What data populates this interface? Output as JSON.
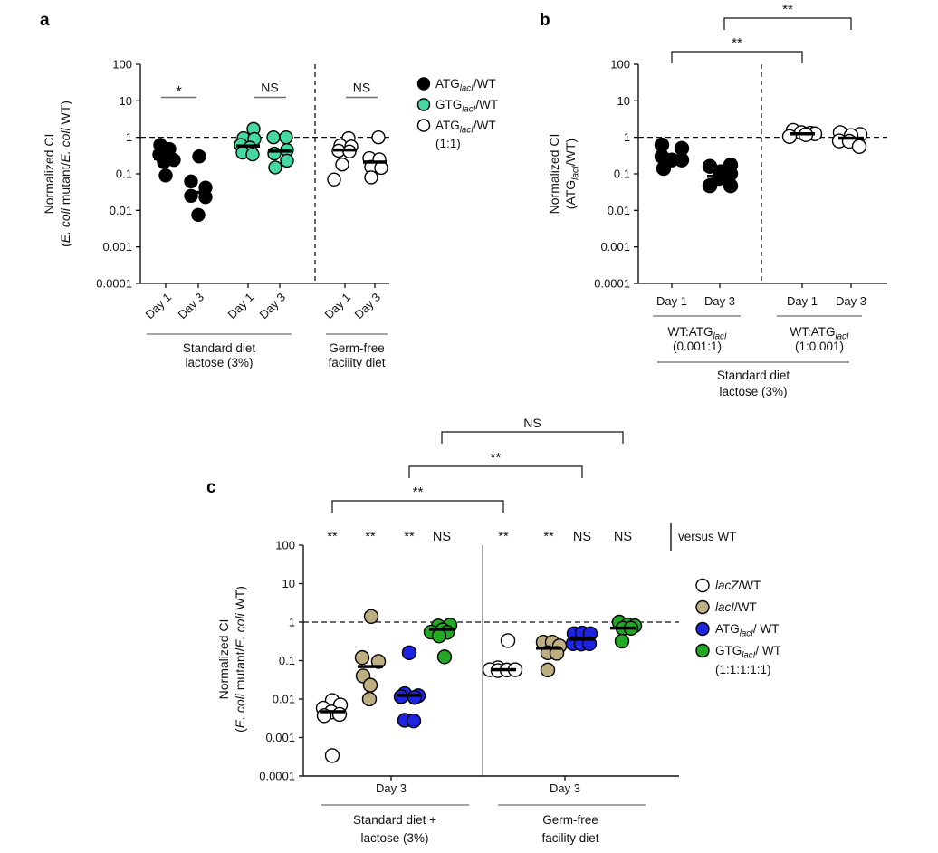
{
  "figure_title": "",
  "colors": {
    "black": "#000000",
    "white": "#ffffff",
    "mint": "#45d9a1",
    "tan": "#bdaf82",
    "blue": "#1d24df",
    "green": "#23a826",
    "axis": "#111111",
    "gray_line": "#6e6e6e",
    "separator_gray": "#888888"
  },
  "chart_data": [
    {
      "panel": "a",
      "type": "scatter",
      "y_scale": "log",
      "ylim": [
        0.0001,
        100
      ],
      "yticks": [
        "100",
        "10",
        "1",
        "0.1",
        "0.01",
        "0.001",
        "0.0001"
      ],
      "ylabel_lines": [
        [
          {
            "t": "Normalized CI"
          }
        ],
        [
          {
            "t": "("
          },
          {
            "t": "E. coli",
            "it": true
          },
          {
            "t": " mutant/"
          },
          {
            "t": "E. coli",
            "it": true
          },
          {
            "t": " WT)"
          }
        ]
      ],
      "reference_line": 1,
      "groups": [
        {
          "day": "Day 1",
          "series": "ATG_lacI/WT",
          "color": "black",
          "median": 0.26,
          "points": [
            [
              -6,
              0.62
            ],
            [
              4,
              0.48
            ],
            [
              -7,
              0.34
            ],
            [
              3,
              0.27
            ],
            [
              9,
              0.24
            ],
            [
              -2,
              0.21
            ],
            [
              0,
              0.09
            ]
          ]
        },
        {
          "day": "Day 3",
          "series": "ATG_lacI/WT",
          "color": "black",
          "median": 0.031,
          "points": [
            [
              1,
              0.3
            ],
            [
              -8,
              0.062
            ],
            [
              8,
              0.042
            ],
            [
              -8,
              0.025
            ],
            [
              8,
              0.023
            ],
            [
              0,
              0.0075
            ]
          ]
        },
        {
          "day": "Day 1",
          "series": "GTG_lacI/WT",
          "color": "mint",
          "median": 0.58,
          "points": [
            [
              6,
              1.7
            ],
            [
              -5,
              0.95
            ],
            [
              7,
              0.9
            ],
            [
              -8,
              0.62
            ],
            [
              2,
              0.52
            ],
            [
              -6,
              0.38
            ],
            [
              5,
              0.34
            ]
          ]
        },
        {
          "day": "Day 3",
          "series": "GTG_lacI/WT",
          "color": "mint",
          "median": 0.42,
          "points": [
            [
              -7,
              1.0
            ],
            [
              7,
              1.0
            ],
            [
              8,
              0.45
            ],
            [
              -6,
              0.36
            ],
            [
              8,
              0.23
            ],
            [
              -5,
              0.15
            ]
          ]
        },
        {
          "day": "Day 1",
          "series": "ATG_lacI/WT (1:1)",
          "color": "white",
          "median": 0.45,
          "points": [
            [
              4,
              0.95
            ],
            [
              -5,
              0.6
            ],
            [
              7,
              0.56
            ],
            [
              -7,
              0.43
            ],
            [
              5,
              0.41
            ],
            [
              -3,
              0.18
            ],
            [
              -12,
              0.07
            ]
          ]
        },
        {
          "day": "Day 3",
          "series": "ATG_lacI/WT (1:1)",
          "color": "white",
          "median": 0.21,
          "points": [
            [
              4,
              1.0
            ],
            [
              -6,
              0.27
            ],
            [
              5,
              0.25
            ],
            [
              -4,
              0.155
            ],
            [
              7,
              0.145
            ],
            [
              -4,
              0.08
            ]
          ]
        }
      ],
      "significance": [
        {
          "label": "*"
        },
        {
          "label": "NS"
        },
        {
          "label": "NS"
        }
      ],
      "sections": [
        {
          "lines": [
            "Standard diet",
            "lactose (3%)"
          ]
        },
        {
          "lines": [
            "Germ-free",
            "facility diet"
          ]
        }
      ],
      "legend": [
        {
          "color": "black",
          "segments": [
            {
              "t": "ATG"
            },
            {
              "t": "lacI",
              "it": true,
              "sub": true
            },
            {
              "t": "/WT"
            }
          ]
        },
        {
          "color": "mint",
          "segments": [
            {
              "t": "GTG"
            },
            {
              "t": "lacI",
              "it": true,
              "sub": true
            },
            {
              "t": "/WT"
            }
          ]
        },
        {
          "color": "white",
          "segments": [
            {
              "t": "ATG"
            },
            {
              "t": "lacI",
              "it": true,
              "sub": true
            },
            {
              "t": "/WT"
            }
          ],
          "extra": "(1:1)"
        }
      ]
    },
    {
      "panel": "b",
      "type": "scatter",
      "y_scale": "log",
      "ylim": [
        0.0001,
        100
      ],
      "yticks": [
        "100",
        "10",
        "1",
        "0.1",
        "0.01",
        "0.001",
        "0.0001"
      ],
      "ylabel_lines": [
        [
          {
            "t": "Normalized CI"
          }
        ],
        [
          {
            "t": "(ATG"
          },
          {
            "t": "lacI",
            "it": true,
            "sub": true
          },
          {
            "t": "/WT)"
          }
        ]
      ],
      "reference_line": 1,
      "groups": [
        {
          "day": "Day 1",
          "series": "WT:ATG_lacI (0.001:1)",
          "color": "black",
          "median": 0.27,
          "points": [
            [
              -11,
              0.62
            ],
            [
              11,
              0.5
            ],
            [
              -11,
              0.3
            ],
            [
              0,
              0.24
            ],
            [
              11,
              0.24
            ],
            [
              -9,
              0.14
            ]
          ]
        },
        {
          "day": "Day 3",
          "series": "WT:ATG_lacI (0.001:1)",
          "color": "black",
          "median": 0.085,
          "points": [
            [
              -11,
              0.16
            ],
            [
              12,
              0.175
            ],
            [
              12,
              0.1
            ],
            [
              1,
              0.115
            ],
            [
              -1,
              0.075
            ],
            [
              -11,
              0.047
            ],
            [
              12,
              0.047
            ]
          ]
        },
        {
          "day": "Day 1",
          "series": "WT:ATG_lacI (1:0.001)",
          "color": "white",
          "median": 1.25,
          "points": [
            [
              -10,
              1.55
            ],
            [
              -1,
              1.35
            ],
            [
              9,
              1.3
            ],
            [
              14,
              1.25
            ],
            [
              4,
              1.18
            ],
            [
              -14,
              1.05
            ]
          ]
        },
        {
          "day": "Day 3",
          "series": "WT:ATG_lacI (1:0.001)",
          "color": "white",
          "median": 0.95,
          "points": [
            [
              -12,
              1.35
            ],
            [
              10,
              1.2
            ],
            [
              0,
              1.12
            ],
            [
              -13,
              0.8
            ],
            [
              -2,
              0.78
            ],
            [
              9,
              0.56
            ]
          ]
        }
      ],
      "brackets": [
        {
          "label": "**"
        },
        {
          "label": "**"
        }
      ],
      "subgroups": [
        {
          "line1_segments": [
            {
              "t": "WT:ATG"
            },
            {
              "t": "lacI",
              "it": true,
              "sub": true
            }
          ],
          "line2": "(0.001:1)"
        },
        {
          "line1_segments": [
            {
              "t": "WT:ATG"
            },
            {
              "t": "lacI",
              "it": true,
              "sub": true
            }
          ],
          "line2": "(1:0.001)"
        }
      ],
      "sections": [
        {
          "lines": [
            "Standard diet",
            "lactose (3%)"
          ]
        }
      ]
    },
    {
      "panel": "c",
      "type": "scatter",
      "y_scale": "log",
      "ylim": [
        0.0001,
        100
      ],
      "yticks": [
        "100",
        "10",
        "1",
        "0.1",
        "0.01",
        "0.001",
        "0.0001"
      ],
      "ylabel_lines": [
        [
          {
            "t": "Normalized CI"
          }
        ],
        [
          {
            "t": "("
          },
          {
            "t": "E. coli",
            "it": true
          },
          {
            "t": " mutant/"
          },
          {
            "t": "E. coli",
            "it": true
          },
          {
            "t": " WT)"
          }
        ]
      ],
      "reference_line": 1,
      "groups": [
        {
          "series": "lacZ/WT standard diet",
          "color": "white",
          "median": 0.0047,
          "points": [
            [
              0,
              0.0092
            ],
            [
              9,
              0.007
            ],
            [
              -10,
              0.0058
            ],
            [
              -1,
              0.0046
            ],
            [
              8,
              0.004
            ],
            [
              -9,
              0.0037
            ],
            [
              0,
              0.00034
            ]
          ]
        },
        {
          "series": "lacI/WT standard diet",
          "color": "tan",
          "median": 0.07,
          "points": [
            [
              1,
              1.4
            ],
            [
              -9,
              0.12
            ],
            [
              9,
              0.095
            ],
            [
              -8,
              0.04
            ],
            [
              0,
              0.023
            ],
            [
              -1,
              0.01
            ]
          ]
        },
        {
          "series": "ATG_lacI/WT standard diet",
          "color": "blue",
          "median": 0.0125,
          "points": [
            [
              0,
              0.16
            ],
            [
              -5,
              0.0138
            ],
            [
              10,
              0.0122
            ],
            [
              -9,
              0.0115
            ],
            [
              6,
              0.011
            ],
            [
              -5,
              0.0028
            ],
            [
              5,
              0.0027
            ]
          ]
        },
        {
          "series": "GTG_lacI/WT standard diet",
          "color": "green",
          "median": 0.65,
          "points": [
            [
              9,
              0.83
            ],
            [
              -4,
              0.79
            ],
            [
              1,
              0.63
            ],
            [
              -12,
              0.55
            ],
            [
              6,
              0.54
            ],
            [
              -3,
              0.44
            ],
            [
              3,
              0.125
            ]
          ]
        },
        {
          "series": "lacZ/WT germ-free",
          "color": "white",
          "median": 0.058,
          "points": [
            [
              5,
              0.33
            ],
            [
              -6,
              0.065
            ],
            [
              -15,
              0.058
            ],
            [
              -6,
              0.055
            ],
            [
              4,
              0.057
            ],
            [
              13,
              0.058
            ]
          ]
        },
        {
          "series": "lacI/WT germ-free",
          "color": "tan",
          "median": 0.21,
          "points": [
            [
              -6,
              0.3
            ],
            [
              4,
              0.3
            ],
            [
              12,
              0.24
            ],
            [
              -1,
              0.16
            ],
            [
              9,
              0.155
            ],
            [
              -1,
              0.057
            ]
          ]
        },
        {
          "series": "ATG_lacI/WT germ-free",
          "color": "blue",
          "median": 0.36,
          "points": [
            [
              -9,
              0.5
            ],
            [
              0,
              0.52
            ],
            [
              9,
              0.5
            ],
            [
              -10,
              0.275
            ],
            [
              -1,
              0.27
            ],
            [
              8,
              0.275
            ]
          ]
        },
        {
          "series": "GTG_lacI/WT germ-free",
          "color": "green",
          "median": 0.7,
          "points": [
            [
              -4,
              1.0
            ],
            [
              5,
              0.84
            ],
            [
              13,
              0.8
            ],
            [
              0,
              0.69
            ],
            [
              9,
              0.69
            ],
            [
              -1,
              0.32
            ]
          ]
        }
      ],
      "col_significance": [
        "**",
        "**",
        "**",
        "NS",
        "**",
        "**",
        "NS",
        "NS"
      ],
      "brackets": [
        {
          "label": "**"
        },
        {
          "label": "**"
        },
        {
          "label": "NS"
        }
      ],
      "versus_note": "versus WT",
      "sections": [
        {
          "day": "Day 3",
          "lines": [
            "Standard diet +",
            "lactose (3%)"
          ]
        },
        {
          "day": "Day 3",
          "lines": [
            "Germ-free",
            "facility diet"
          ]
        }
      ],
      "legend": [
        {
          "color": "white",
          "segments": [
            {
              "t": "lacZ",
              "it": true
            },
            {
              "t": "/WT"
            }
          ]
        },
        {
          "color": "tan",
          "segments": [
            {
              "t": "lacI",
              "it": true
            },
            {
              "t": "/WT"
            }
          ]
        },
        {
          "color": "blue",
          "segments": [
            {
              "t": "ATG"
            },
            {
              "t": "lacI",
              "it": true,
              "sub": true
            },
            {
              "t": "/ WT"
            }
          ]
        },
        {
          "color": "green",
          "segments": [
            {
              "t": "GTG"
            },
            {
              "t": "lacI",
              "it": true,
              "sub": true
            },
            {
              "t": "/ WT"
            }
          ],
          "extra": "(1:1:1:1:1)"
        }
      ]
    }
  ]
}
